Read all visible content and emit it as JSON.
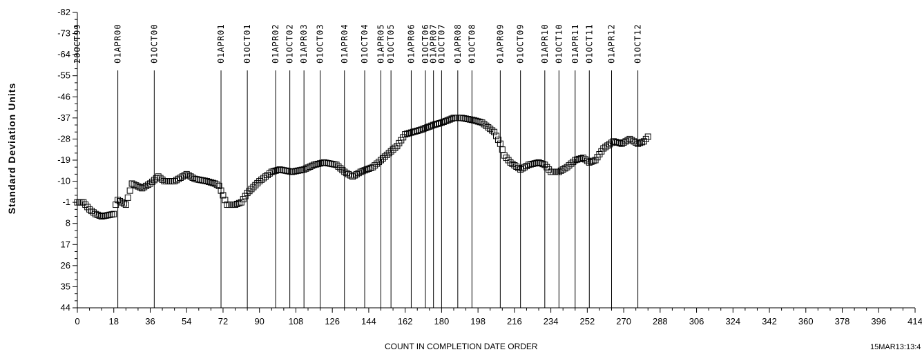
{
  "chart_data": {
    "type": "scatter",
    "xlabel": "COUNT IN COMPLETION DATE ORDER",
    "ylabel": "Standard Deviation Units",
    "footer_stamp": "15MAR13:13:4",
    "xlim": [
      0,
      414
    ],
    "ylim": [
      -82,
      44
    ],
    "y_inverted": true,
    "x_ticks": [
      0,
      18,
      36,
      54,
      72,
      90,
      108,
      126,
      144,
      162,
      180,
      198,
      216,
      234,
      252,
      270,
      288,
      306,
      324,
      342,
      360,
      378,
      396,
      414
    ],
    "y_ticks": [
      -82,
      -73,
      -64,
      -55,
      -46,
      -37,
      -28,
      -19,
      -10,
      -1,
      8,
      17,
      26,
      35,
      44
    ],
    "reference_lines": [
      {
        "x": 0,
        "label": "20OCT99"
      },
      {
        "x": 20,
        "label": "01APR00"
      },
      {
        "x": 38,
        "label": "01OCT00"
      },
      {
        "x": 71,
        "label": "01APR01"
      },
      {
        "x": 84,
        "label": "01OCT01"
      },
      {
        "x": 98,
        "label": "01APR02"
      },
      {
        "x": 105,
        "label": "01OCT02"
      },
      {
        "x": 112,
        "label": "01APR03"
      },
      {
        "x": 120,
        "label": "01OCT03"
      },
      {
        "x": 132,
        "label": "01APR04"
      },
      {
        "x": 142,
        "label": "01OCT04"
      },
      {
        "x": 150,
        "label": "01APR05"
      },
      {
        "x": 155,
        "label": "01OCT05"
      },
      {
        "x": 165,
        "label": "01APR06"
      },
      {
        "x": 172,
        "label": "01OCT06"
      },
      {
        "x": 176,
        "label": "01APR07"
      },
      {
        "x": 180,
        "label": "01OCT07"
      },
      {
        "x": 188,
        "label": "01APR08"
      },
      {
        "x": 195,
        "label": "01OCT08"
      },
      {
        "x": 209,
        "label": "01APR09"
      },
      {
        "x": 219,
        "label": "01OCT09"
      },
      {
        "x": 231,
        "label": "01APR10"
      },
      {
        "x": 238,
        "label": "01OCT10"
      },
      {
        "x": 246,
        "label": "01APR11"
      },
      {
        "x": 253,
        "label": "01OCT11"
      },
      {
        "x": 264,
        "label": "01APR12"
      },
      {
        "x": 277,
        "label": "01OCT12"
      }
    ],
    "series_anchors": [
      [
        0,
        -1
      ],
      [
        3,
        -1
      ],
      [
        6,
        2
      ],
      [
        9,
        4
      ],
      [
        12,
        5
      ],
      [
        15,
        4.5
      ],
      [
        18,
        4
      ],
      [
        19,
        0
      ],
      [
        20,
        -2
      ],
      [
        24,
        0
      ],
      [
        27,
        -9
      ],
      [
        32,
        -7
      ],
      [
        36,
        -9
      ],
      [
        40,
        -12
      ],
      [
        43,
        -10
      ],
      [
        48,
        -10
      ],
      [
        54,
        -13
      ],
      [
        58,
        -11
      ],
      [
        64,
        -10
      ],
      [
        68,
        -9
      ],
      [
        70,
        -8
      ],
      [
        72,
        -4
      ],
      [
        74,
        0
      ],
      [
        78,
        0
      ],
      [
        81,
        -1
      ],
      [
        84,
        -5
      ],
      [
        90,
        -10
      ],
      [
        96,
        -14
      ],
      [
        100,
        -15
      ],
      [
        106,
        -14
      ],
      [
        112,
        -15
      ],
      [
        117,
        -17
      ],
      [
        122,
        -18
      ],
      [
        128,
        -17
      ],
      [
        132,
        -14
      ],
      [
        136,
        -12
      ],
      [
        140,
        -14
      ],
      [
        146,
        -16
      ],
      [
        150,
        -19
      ],
      [
        154,
        -22
      ],
      [
        158,
        -25
      ],
      [
        162,
        -30
      ],
      [
        166,
        -31
      ],
      [
        170,
        -32
      ],
      [
        176,
        -34
      ],
      [
        180,
        -35
      ],
      [
        186,
        -37
      ],
      [
        190,
        -37
      ],
      [
        196,
        -36
      ],
      [
        200,
        -35
      ],
      [
        206,
        -31
      ],
      [
        209,
        -26
      ],
      [
        211,
        -21
      ],
      [
        214,
        -18
      ],
      [
        219,
        -15
      ],
      [
        223,
        -17
      ],
      [
        228,
        -18
      ],
      [
        231,
        -17
      ],
      [
        234,
        -14
      ],
      [
        238,
        -14
      ],
      [
        242,
        -16
      ],
      [
        246,
        -19
      ],
      [
        250,
        -20
      ],
      [
        253,
        -18
      ],
      [
        256,
        -19
      ],
      [
        260,
        -24
      ],
      [
        265,
        -27
      ],
      [
        269,
        -26
      ],
      [
        273,
        -28
      ],
      [
        277,
        -26
      ],
      [
        280,
        -27
      ],
      [
        282,
        -29
      ]
    ]
  }
}
